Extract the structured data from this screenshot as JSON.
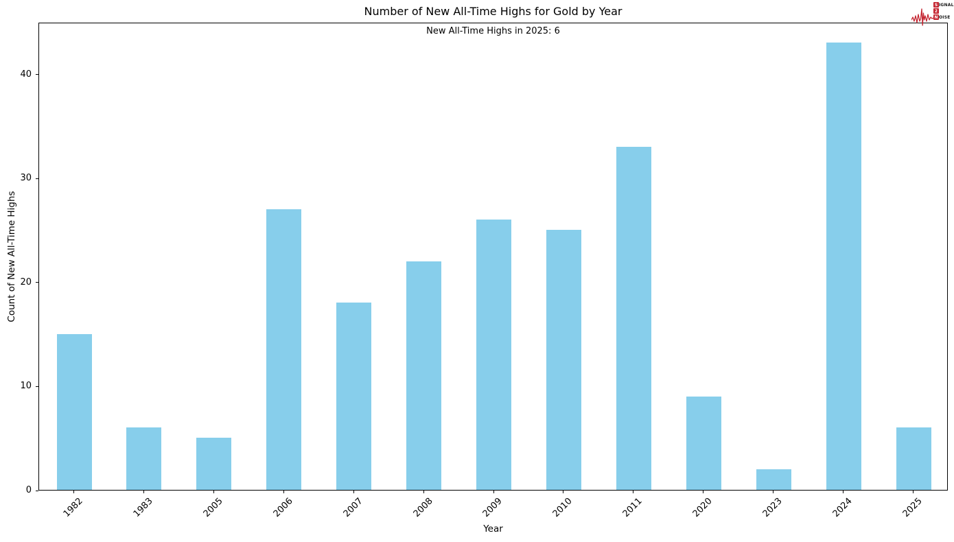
{
  "chart_data": {
    "type": "bar",
    "title": "Number of New All-Time Highs for Gold by Year",
    "annotation": "New All-Time Highs in 2025: 6",
    "xlabel": "Year",
    "ylabel": "Count of New All-Time Highs",
    "categories": [
      "1982",
      "1983",
      "2005",
      "2006",
      "2007",
      "2008",
      "2009",
      "2010",
      "2011",
      "2020",
      "2023",
      "2024",
      "2025"
    ],
    "values": [
      15,
      6,
      5,
      27,
      18,
      22,
      26,
      25,
      33,
      9,
      2,
      43,
      6
    ],
    "ylim": [
      0,
      45
    ],
    "yticks": [
      0,
      10,
      20,
      30,
      40
    ],
    "bar_color": "#87CEEB",
    "grid": false,
    "legend": false,
    "xtick_rotation": 45
  },
  "logo": {
    "name": "signal-2-noise",
    "line1_initial": "S",
    "line1_rest": "IGNAL",
    "line2": "2",
    "line3_initial": "N",
    "line3_rest": "OISE",
    "accent_color": "#c42430"
  }
}
